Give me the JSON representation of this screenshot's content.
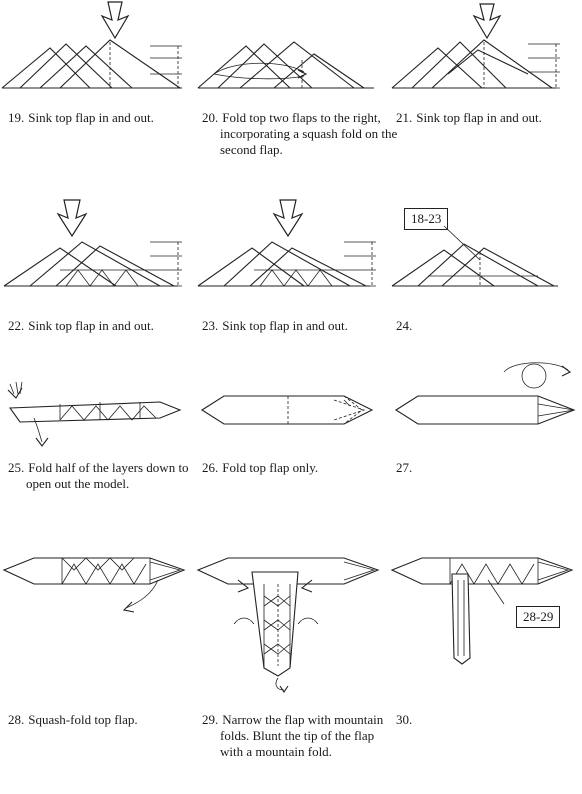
{
  "steps": [
    {
      "num": "19.",
      "text": "Sink top flap in and out."
    },
    {
      "num": "20.",
      "text": "Fold top two flaps to the right, incorporating a squash fold on the second flap."
    },
    {
      "num": "21.",
      "text": "Sink top flap in and out."
    },
    {
      "num": "22.",
      "text": "Sink top flap in and out."
    },
    {
      "num": "23.",
      "text": "Sink top flap in and out."
    },
    {
      "num": "24.",
      "text": ""
    },
    {
      "num": "25.",
      "text": "Fold half of the layers down to open out the model."
    },
    {
      "num": "26.",
      "text": "Fold top flap only."
    },
    {
      "num": "27.",
      "text": ""
    },
    {
      "num": "28.",
      "text": "Squash-fold top flap."
    },
    {
      "num": "29.",
      "text": "Narrow the flap with mountain folds. Blunt the tip of the flap with a mountain fold."
    },
    {
      "num": "30.",
      "text": ""
    }
  ],
  "references": {
    "step24": "18-23",
    "step30": "28-29"
  },
  "icons": [
    "sink-arrow-icon",
    "fold-arrow-icon",
    "turn-over-icon",
    "flip-arrow-icon"
  ]
}
